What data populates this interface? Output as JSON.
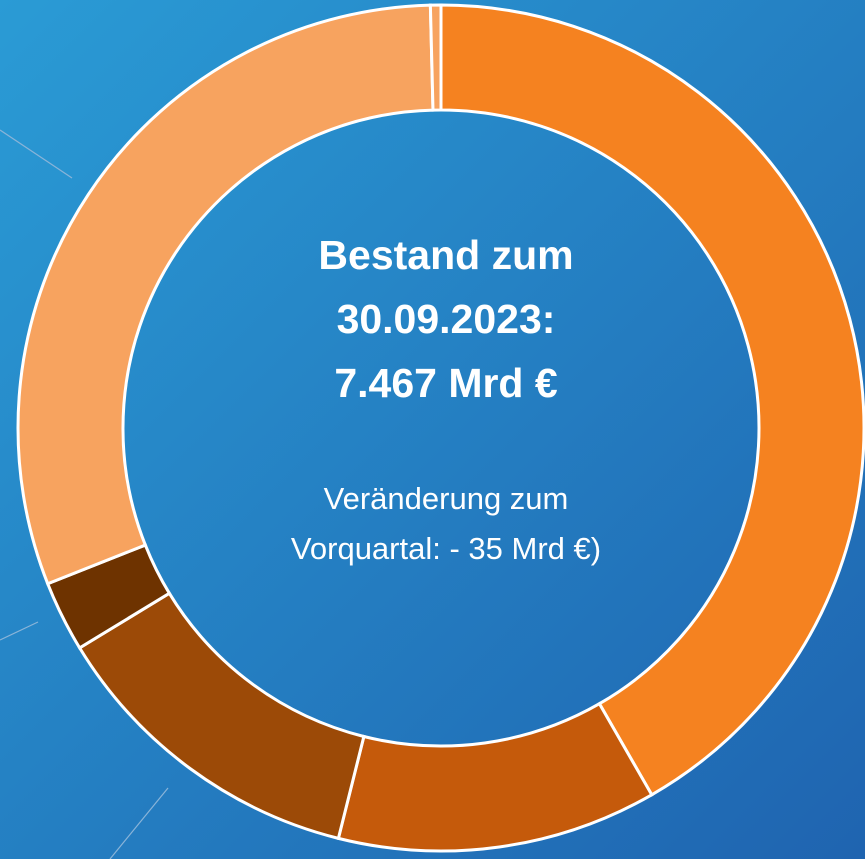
{
  "chart_data": {
    "type": "donut",
    "title_lines": [
      "Bestand zum",
      "30.09.2023:",
      "7.467 Mrd €"
    ],
    "subtitle_lines": [
      "Veränderung zum",
      "Vorquartal: - 35 Mrd €)"
    ],
    "categories": [
      null,
      null,
      null,
      null,
      null,
      null
    ],
    "values": [
      41.7,
      12.2,
      12.4,
      2.7,
      30.6,
      0.4
    ],
    "colors": [
      "#f58220",
      "#c55a0b",
      "#9c4a07",
      "#6e3300",
      "#f7a35f",
      "#f7a35f"
    ]
  }
}
